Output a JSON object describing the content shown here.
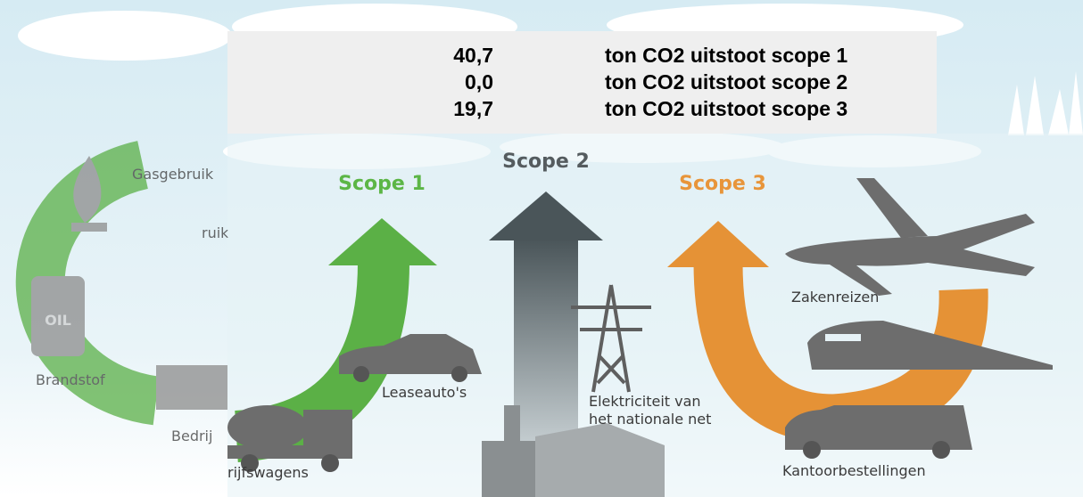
{
  "table": {
    "rows": [
      [
        "40,7",
        "ton CO2 uitstoot scope 1"
      ],
      [
        "0,0",
        "ton CO2 uitstoot scope 2"
      ],
      [
        "19,7",
        "ton CO2 uitstoot scope 3"
      ]
    ]
  },
  "scopes": {
    "scope1": "Scope 1",
    "scope2": "Scope 2",
    "scope3": "Scope 3"
  },
  "labels": {
    "lease_cars": "Leaseauto's",
    "company_vans": "rijfswagens",
    "electricity": [
      "Elektriciteit van",
      "het nationale net"
    ],
    "business_travel": "Zakenreizen",
    "office_deliveries": "Kantoorbestellingen"
  },
  "background_labels": {
    "gas": "Gasgebruik",
    "gas_cropped": "ruik",
    "fuel": "Brandstof",
    "company_cropped": "Bedrij",
    "oil": "OIL"
  }
}
